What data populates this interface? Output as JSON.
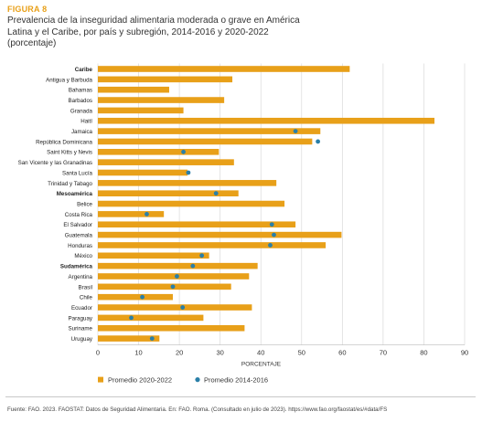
{
  "figure_label": "FIGURA 8",
  "title_lines": [
    "Prevalencia de la inseguridad alimentaria moderada o grave en América",
    "Latina y el Caribe, por país y subregión, 2014-2016 y 2020-2022",
    "(porcentaje)"
  ],
  "source": "Fuente: FAO. 2023. FAOSTAT: Datos de Seguridad Alimentaria. En: FAO. Roma. (Consultado en julio de 2023). https://www.fao.org/faostat/es/#data/FS",
  "colors": {
    "bar": "#e8a019",
    "dot": "#2a7fa8",
    "grid": "#d9d9d9",
    "accent": "#e8a019"
  },
  "chart_data": {
    "type": "bar",
    "orientation": "horizontal",
    "xlabel": "PORCENTAJE",
    "xlim": [
      0,
      90
    ],
    "xticks": [
      0,
      10,
      20,
      30,
      40,
      50,
      60,
      70,
      80,
      90
    ],
    "grid": true,
    "legend_position": "bottom",
    "categories": [
      "Caribe",
      "Antigua y Barbuda",
      "Bahamas",
      "Barbados",
      "Granada",
      "Haití",
      "Jamaica",
      "República Dominicana",
      "Saint Kitts y Nevis",
      "San Vicente y las Granadinas",
      "Santa Lucía",
      "Trinidad y Tabago",
      "Mesoamérica",
      "Belice",
      "Costa Rica",
      "El Salvador",
      "Guatemala",
      "Honduras",
      "México",
      "Sudamérica",
      "Argentina",
      "Brasil",
      "Chile",
      "Ecuador",
      "Paraguay",
      "Suriname",
      "Uruguay"
    ],
    "bold_categories": [
      "Caribe",
      "Mesoamérica",
      "Sudamérica"
    ],
    "series": [
      {
        "name": "Promedio 2020-2022",
        "marker": "bar",
        "values": [
          61.8,
          33.0,
          17.5,
          31.0,
          21.0,
          82.6,
          54.6,
          52.6,
          29.7,
          33.4,
          22.0,
          43.8,
          34.5,
          45.8,
          16.2,
          48.5,
          59.8,
          55.9,
          27.3,
          39.2,
          37.1,
          32.7,
          18.4,
          37.8,
          25.9,
          36.0,
          15.1
        ]
      },
      {
        "name": "Promedio 2014-2016",
        "marker": "dot",
        "values": [
          null,
          null,
          null,
          null,
          null,
          null,
          48.5,
          54.0,
          21.0,
          null,
          22.2,
          null,
          29.0,
          null,
          12.0,
          42.7,
          43.2,
          42.3,
          25.5,
          23.3,
          19.4,
          18.4,
          10.9,
          20.8,
          8.2,
          null,
          13.3
        ]
      }
    ]
  }
}
